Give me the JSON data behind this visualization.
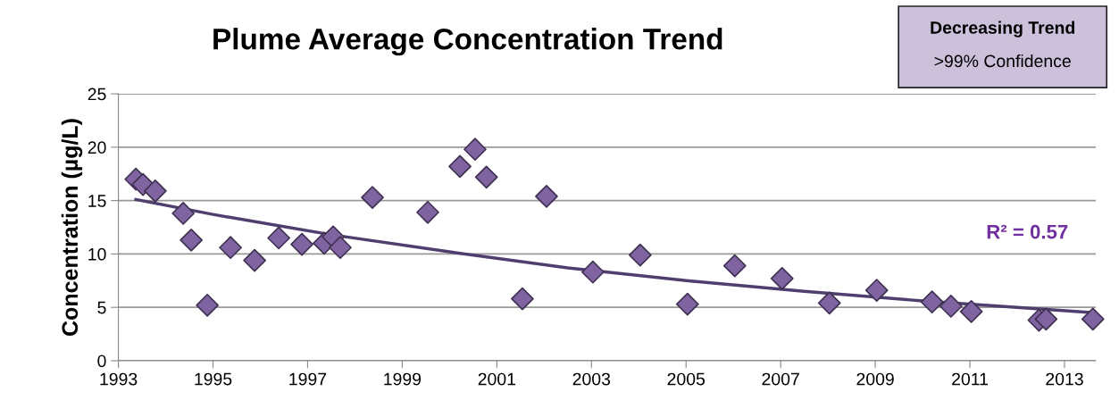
{
  "chart_data": {
    "type": "scatter",
    "title": "Plume Average Concentration Trend",
    "ylabel": "Concentration (µg/L)",
    "annotations": [
      "Decreasing Trend",
      ">99% Confidence",
      "R² = 0.57"
    ],
    "xlim": [
      1993,
      2013.66
    ],
    "xticks": [
      1993,
      1995,
      1997,
      1999,
      2001,
      2003,
      2005,
      2007,
      2009,
      2011,
      2013
    ],
    "ylim": [
      0,
      25
    ],
    "yticks": [
      0,
      5,
      10,
      15,
      20,
      25
    ],
    "grid": "y",
    "legend": false,
    "marker": "diamond",
    "series": [
      {
        "color": "#8064a2",
        "x": [
          1993.37,
          1993.52,
          1993.78,
          1994.37,
          1994.54,
          1994.88,
          1995.37,
          1995.88,
          1996.39,
          1996.88,
          1997.35,
          1997.54,
          1997.69,
          1998.37,
          1999.54,
          2000.22,
          2000.54,
          2000.78,
          2001.54,
          2002.05,
          2003.03,
          2004.03,
          2005.03,
          2006.03,
          2007.03,
          2008.03,
          2009.03,
          2010.2,
          2010.6,
          2011.03,
          2012.46,
          2012.61,
          2013.6
        ],
        "values": [
          17.0,
          16.5,
          15.9,
          13.8,
          11.3,
          5.2,
          10.6,
          9.4,
          11.5,
          10.9,
          11.0,
          11.6,
          10.6,
          15.3,
          13.9,
          18.2,
          19.8,
          17.2,
          5.8,
          15.4,
          8.3,
          9.9,
          5.3,
          8.9,
          7.7,
          5.4,
          6.6,
          5.5,
          5.1,
          4.6,
          3.8,
          3.9,
          3.9
        ]
      },
      {
        "type": "line",
        "color": "#4f3f6f",
        "marker": "none",
        "x": [
          1993.37,
          1995,
          1997.5,
          2000,
          2002.5,
          2005,
          2007.5,
          2010,
          2012,
          2013.6
        ],
        "values": [
          15.1,
          13.7,
          11.8,
          10.2,
          8.7,
          7.5,
          6.5,
          5.6,
          5.0,
          4.5
        ]
      }
    ]
  }
}
